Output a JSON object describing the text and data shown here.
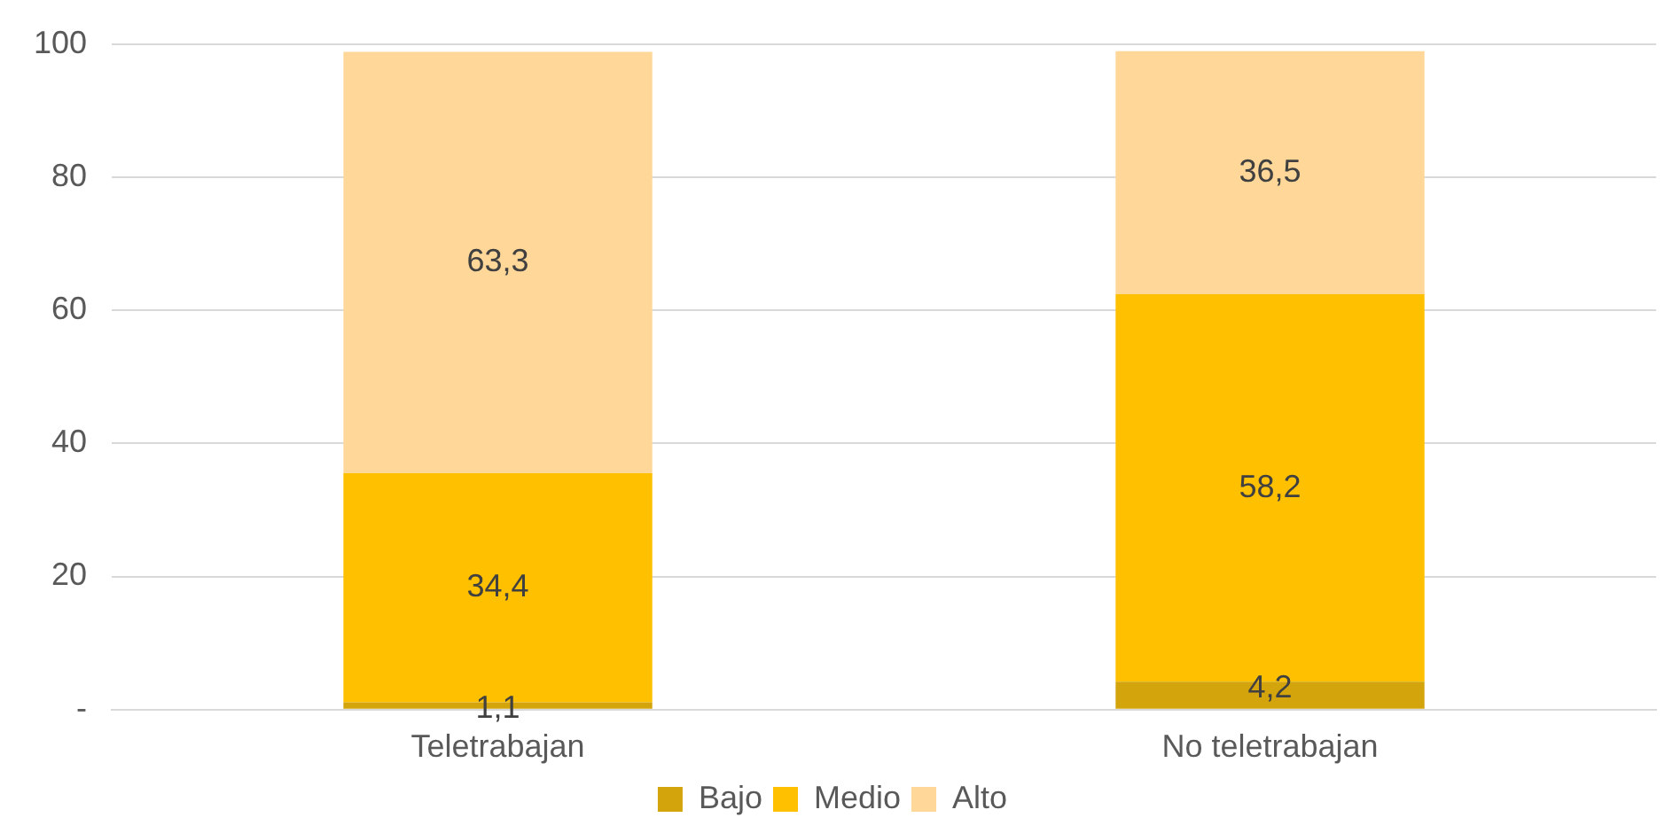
{
  "chart_data": {
    "type": "bar",
    "stacked": true,
    "categories": [
      "Teletrabajan",
      "No teletrabajan"
    ],
    "series": [
      {
        "name": "Bajo",
        "color": "#d4a40c",
        "values": [
          1.1,
          4.2
        ],
        "value_labels": [
          "1,1",
          "4,2"
        ]
      },
      {
        "name": "Medio",
        "color": "#ffc000",
        "values": [
          34.4,
          58.2
        ],
        "value_labels": [
          "34,4",
          "58,2"
        ]
      },
      {
        "name": "Alto",
        "color": "#ffd899",
        "values": [
          63.3,
          36.5
        ],
        "value_labels": [
          "63,3",
          "36,5"
        ]
      }
    ],
    "ylim": [
      0,
      100
    ],
    "yticks": [
      {
        "value": 0,
        "label": "-"
      },
      20,
      40,
      60,
      80,
      100
    ],
    "grid": "y",
    "legend": "bottom"
  }
}
